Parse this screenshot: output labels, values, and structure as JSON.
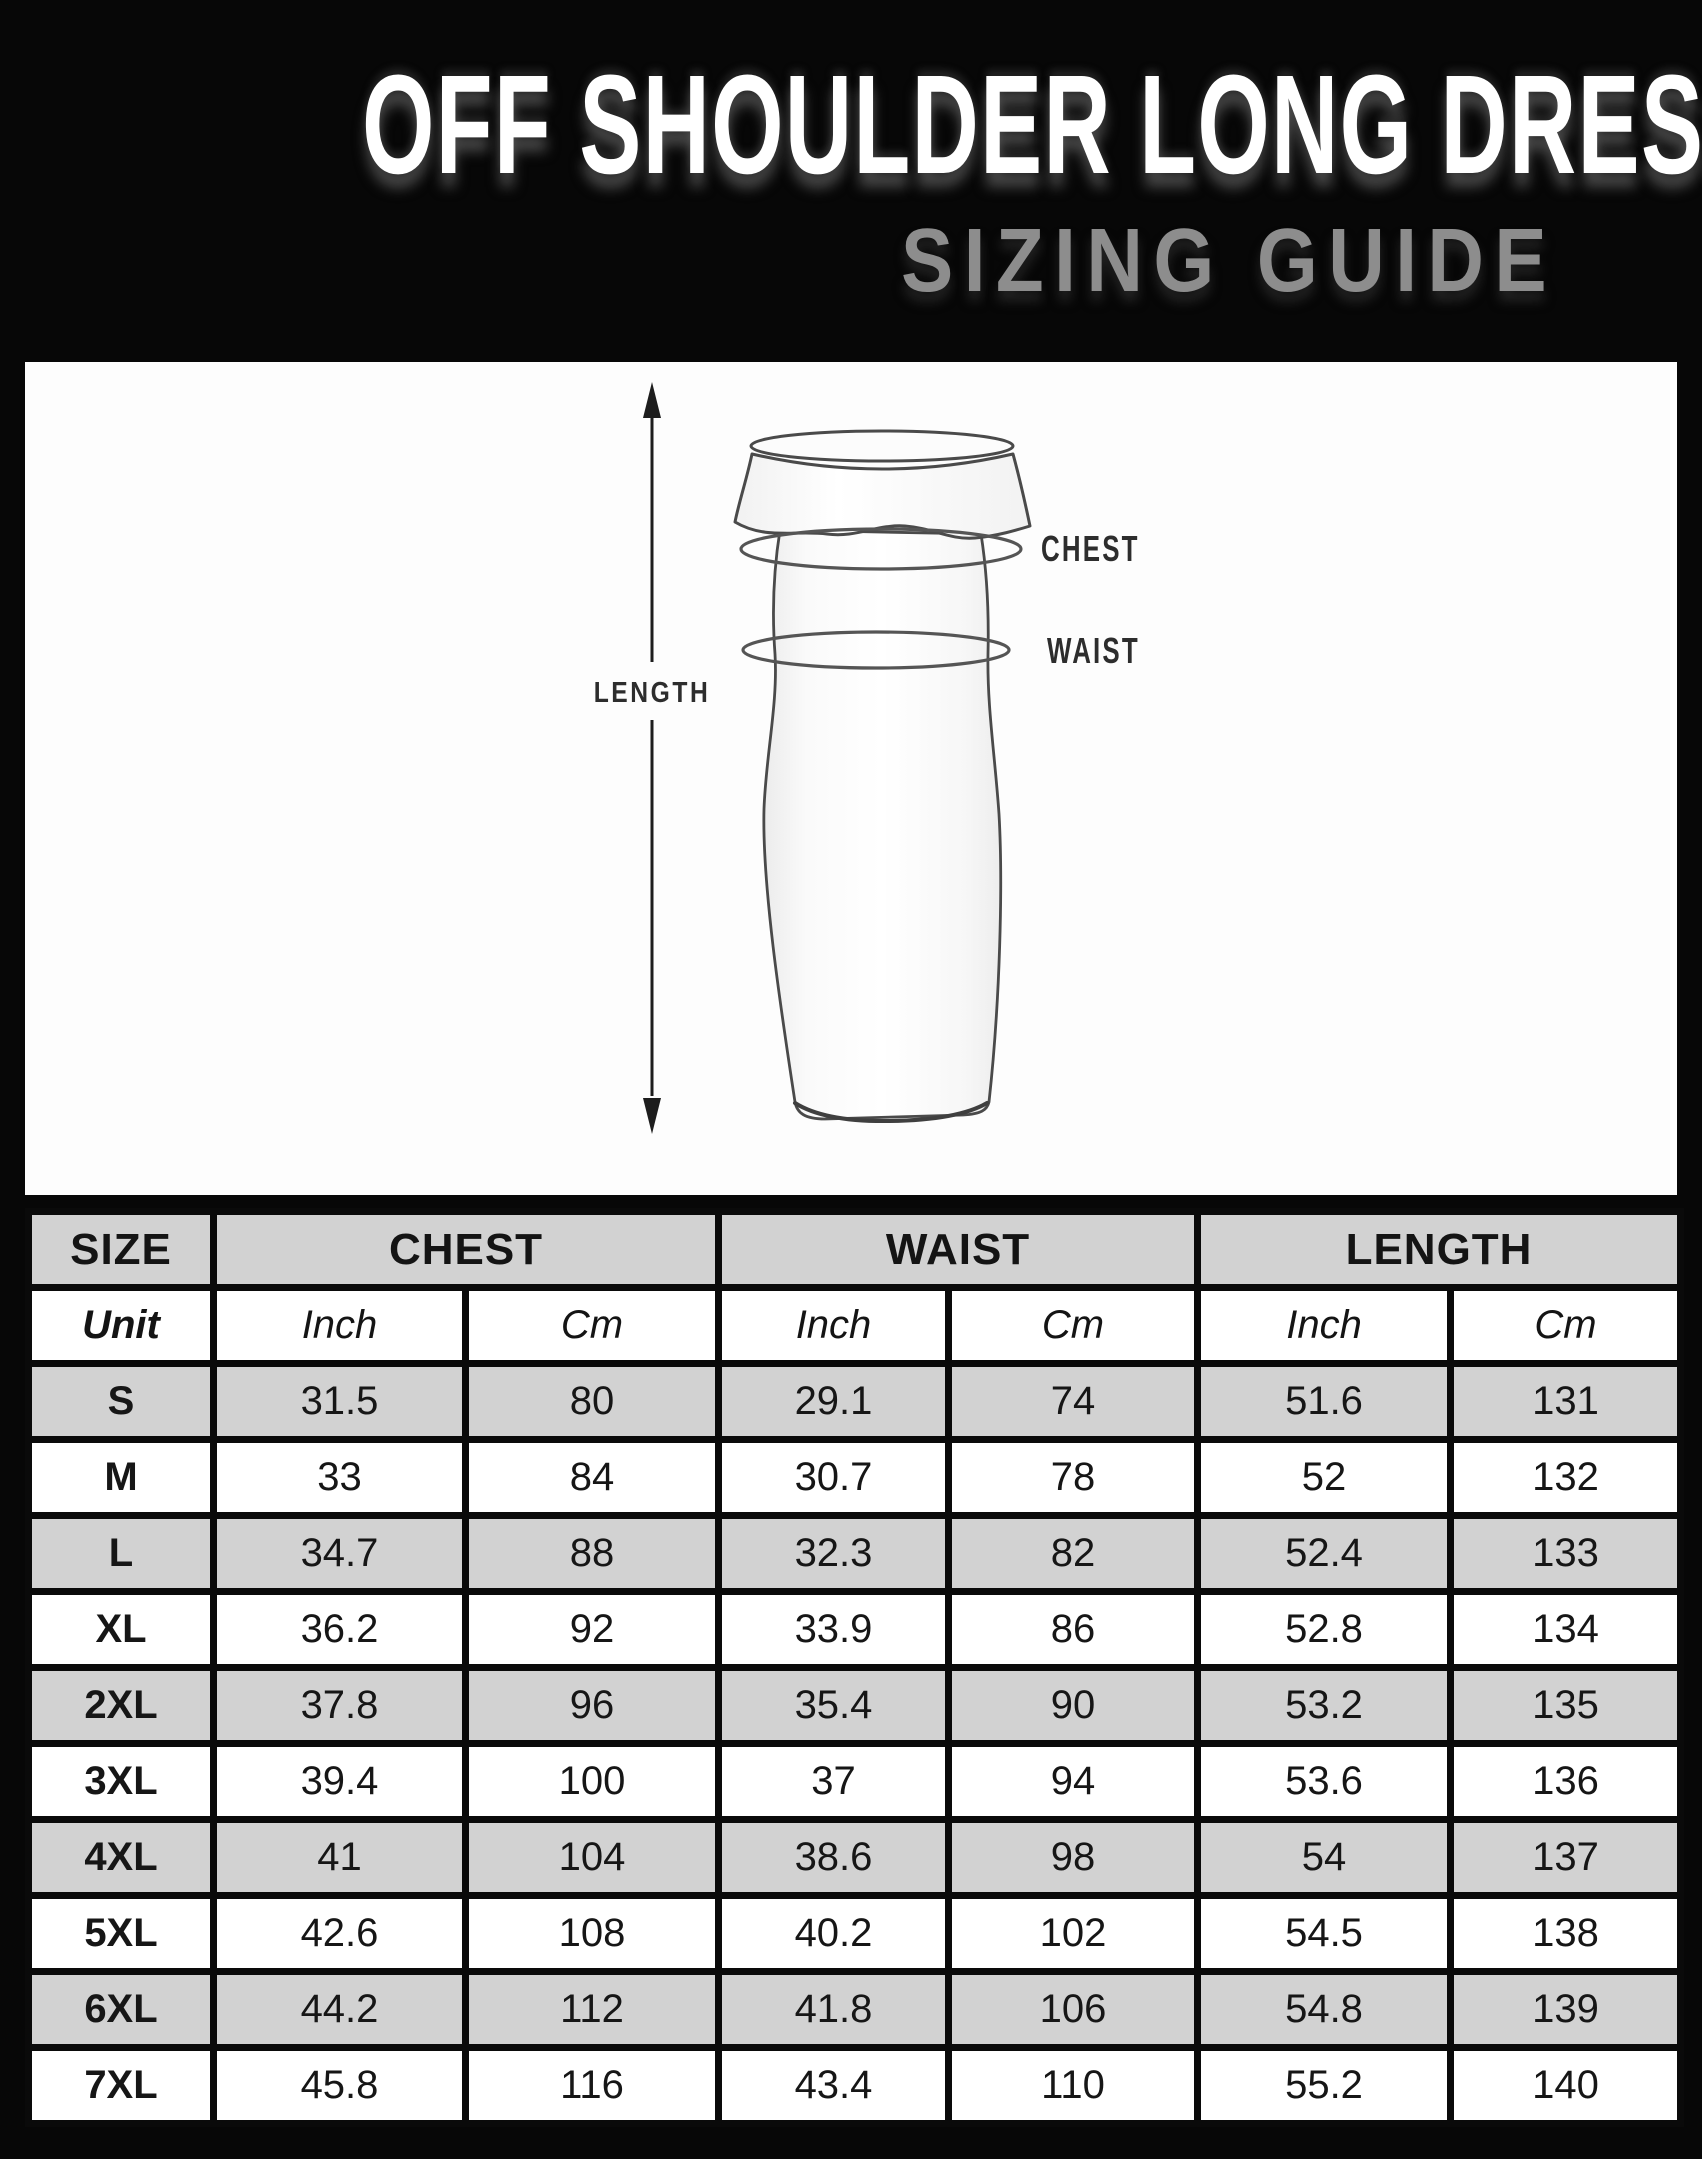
{
  "header": {
    "title": "OFF SHOULDER LONG DRESS",
    "subtitle": "SIZING GUIDE"
  },
  "diagram": {
    "length_label": "LENGTH",
    "chest_label": "CHEST",
    "waist_label": "WAIST"
  },
  "table": {
    "columns": [
      "SIZE",
      "CHEST",
      "WAIST",
      "LENGTH"
    ],
    "unit_row": {
      "label": "Unit",
      "units": [
        "Inch",
        "Cm",
        "Inch",
        "Cm",
        "Inch",
        "Cm"
      ]
    },
    "rows": [
      {
        "size": "S",
        "values": [
          "31.5",
          "80",
          "29.1",
          "74",
          "51.6",
          "131"
        ]
      },
      {
        "size": "M",
        "values": [
          "33",
          "84",
          "30.7",
          "78",
          "52",
          "132"
        ]
      },
      {
        "size": "L",
        "values": [
          "34.7",
          "88",
          "32.3",
          "82",
          "52.4",
          "133"
        ]
      },
      {
        "size": "XL",
        "values": [
          "36.2",
          "92",
          "33.9",
          "86",
          "52.8",
          "134"
        ]
      },
      {
        "size": "2XL",
        "values": [
          "37.8",
          "96",
          "35.4",
          "90",
          "53.2",
          "135"
        ]
      },
      {
        "size": "3XL",
        "values": [
          "39.4",
          "100",
          "37",
          "94",
          "53.6",
          "136"
        ]
      },
      {
        "size": "4XL",
        "values": [
          "41",
          "104",
          "38.6",
          "98",
          "54",
          "137"
        ]
      },
      {
        "size": "5XL",
        "values": [
          "42.6",
          "108",
          "40.2",
          "102",
          "54.5",
          "138"
        ]
      },
      {
        "size": "6XL",
        "values": [
          "44.2",
          "112",
          "41.8",
          "106",
          "54.8",
          "139"
        ]
      },
      {
        "size": "7XL",
        "values": [
          "45.8",
          "116",
          "43.4",
          "110",
          "55.2",
          "140"
        ]
      }
    ]
  },
  "colors": {
    "background": "#070707",
    "panel": "#fdfdfd",
    "row_alt_gray": "#d2d2d2",
    "subtitle_gray": "#8d8d8d",
    "sketch_stroke": "#4a4a4a"
  }
}
